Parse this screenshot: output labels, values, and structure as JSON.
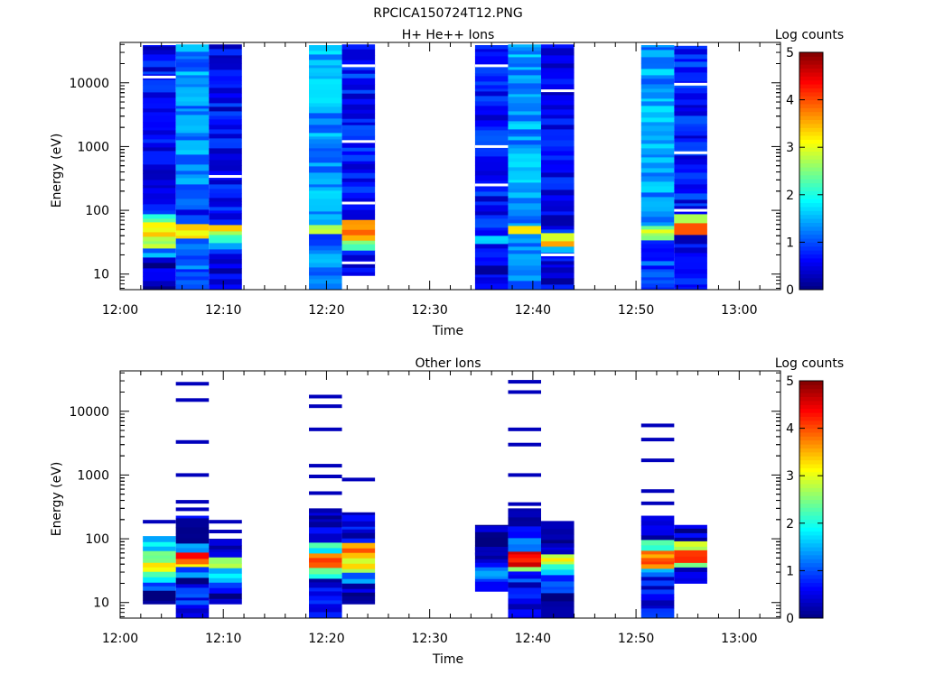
{
  "figure": {
    "title": "RPCICA150724T12.PNG"
  },
  "colors": {
    "axis": "#000000",
    "background": "#ffffff",
    "gap": "#ffffff"
  },
  "colormap": [
    "#00007f",
    "#0000ff",
    "#007fff",
    "#00ffff",
    "#7fff7f",
    "#ffff00",
    "#ff7f00",
    "#ff0000",
    "#7f0000"
  ],
  "chart_data": [
    {
      "type": "heatmap",
      "title": "H+ He++ Ions",
      "xlabel": "Time",
      "ylabel": "Energy (eV)",
      "x_ticks": [
        "12:00",
        "12:10",
        "12:20",
        "12:30",
        "12:40",
        "12:50",
        "13:00"
      ],
      "xlim_minutes": [
        0,
        64
      ],
      "y_scale": "log",
      "y_ticks": [
        "10",
        "100",
        "1000",
        "10000"
      ],
      "ylim": [
        5.7,
        43000
      ],
      "colorbar": {
        "label": "Log counts",
        "ticks": [
          "0",
          "1",
          "2",
          "3",
          "4",
          "5"
        ],
        "range": [
          0,
          5
        ]
      },
      "columns": [
        {
          "start_min": 2.2,
          "end_min": 5.4,
          "emin": 5.7,
          "emax": 39000,
          "bands": [
            {
              "emin": 5.7,
              "emax": 18,
              "value": 0.3
            },
            {
              "emin": 18,
              "emax": 26,
              "value": 1.2
            },
            {
              "emin": 26,
              "emax": 38,
              "value": 2.5
            },
            {
              "emin": 38,
              "emax": 60,
              "value": 3.2
            },
            {
              "emin": 60,
              "emax": 85,
              "value": 2.0
            },
            {
              "emin": 85,
              "emax": 39000,
              "value": 0.6
            }
          ],
          "gaps": [
            12300
          ]
        },
        {
          "start_min": 5.4,
          "end_min": 8.6,
          "emin": 5.7,
          "emax": 40000,
          "bands": [
            {
              "emin": 5.7,
              "emax": 25,
              "value": 1.1
            },
            {
              "emin": 25,
              "emax": 38,
              "value": 1.0
            },
            {
              "emin": 38,
              "emax": 55,
              "value": 3.0
            },
            {
              "emin": 55,
              "emax": 100,
              "value": 0.8
            },
            {
              "emin": 100,
              "emax": 40000,
              "value": 1.3
            }
          ],
          "gaps": []
        },
        {
          "start_min": 8.6,
          "end_min": 11.8,
          "emin": 5.7,
          "emax": 40000,
          "bands": [
            {
              "emin": 5.7,
              "emax": 20,
              "value": 0.5
            },
            {
              "emin": 20,
              "emax": 28,
              "value": 1.2
            },
            {
              "emin": 28,
              "emax": 40,
              "value": 2.2
            },
            {
              "emin": 40,
              "emax": 55,
              "value": 3.0
            },
            {
              "emin": 55,
              "emax": 40000,
              "value": 0.6
            }
          ],
          "gaps": [
            340
          ]
        },
        {
          "start_min": 18.3,
          "end_min": 21.5,
          "emin": 5.7,
          "emax": 39000,
          "bands": [
            {
              "emin": 5.7,
              "emax": 40,
              "value": 1.2
            },
            {
              "emin": 40,
              "emax": 60,
              "value": 3.0
            },
            {
              "emin": 60,
              "emax": 39000,
              "value": 1.4
            }
          ],
          "gaps": []
        },
        {
          "start_min": 21.5,
          "end_min": 24.7,
          "emin": 9.5,
          "emax": 40000,
          "bands": [
            {
              "emin": 9.5,
              "emax": 25,
              "value": 0.6
            },
            {
              "emin": 25,
              "emax": 35,
              "value": 2.5
            },
            {
              "emin": 35,
              "emax": 70,
              "value": 3.5
            },
            {
              "emin": 70,
              "emax": 40000,
              "value": 0.7
            }
          ],
          "gaps": [
            15,
            130,
            1200,
            18500
          ]
        },
        {
          "start_min": 34.4,
          "end_min": 37.6,
          "emin": 5.7,
          "emax": 39000,
          "bands": [
            {
              "emin": 5.7,
              "emax": 30,
              "value": 0.5
            },
            {
              "emin": 30,
              "emax": 40,
              "value": 1.6
            },
            {
              "emin": 40,
              "emax": 39000,
              "value": 0.7
            }
          ],
          "gaps": [
            250,
            1000,
            18500
          ]
        },
        {
          "start_min": 37.6,
          "end_min": 40.8,
          "emin": 5.7,
          "emax": 40000,
          "bands": [
            {
              "emin": 5.7,
              "emax": 40,
              "value": 1.1
            },
            {
              "emin": 40,
              "emax": 60,
              "value": 3.2
            },
            {
              "emin": 60,
              "emax": 40000,
              "value": 1.4
            }
          ],
          "gaps": []
        },
        {
          "start_min": 40.8,
          "end_min": 44.0,
          "emin": 5.7,
          "emax": 40000,
          "bands": [
            {
              "emin": 5.7,
              "emax": 24,
              "value": 0.5
            },
            {
              "emin": 24,
              "emax": 30,
              "value": 1.8
            },
            {
              "emin": 30,
              "emax": 45,
              "value": 3.3
            },
            {
              "emin": 45,
              "emax": 40000,
              "value": 0.6
            }
          ],
          "gaps": [
            20,
            7500
          ]
        },
        {
          "start_min": 50.5,
          "end_min": 53.7,
          "emin": 5.7,
          "emax": 39000,
          "bands": [
            {
              "emin": 5.7,
              "emax": 35,
              "value": 1.0
            },
            {
              "emin": 35,
              "emax": 60,
              "value": 2.8
            },
            {
              "emin": 60,
              "emax": 39000,
              "value": 1.4
            }
          ],
          "gaps": []
        },
        {
          "start_min": 53.7,
          "end_min": 56.9,
          "emin": 5.7,
          "emax": 38000,
          "bands": [
            {
              "emin": 5.7,
              "emax": 40,
              "value": 0.6
            },
            {
              "emin": 40,
              "emax": 62,
              "value": 4.2
            },
            {
              "emin": 62,
              "emax": 90,
              "value": 2.8
            },
            {
              "emin": 90,
              "emax": 38000,
              "value": 0.7
            }
          ],
          "gaps": [
            100,
            800,
            9500
          ]
        }
      ]
    },
    {
      "type": "heatmap",
      "title": "Other Ions",
      "xlabel": "Time",
      "ylabel": "Energy (eV)",
      "x_ticks": [
        "12:00",
        "12:10",
        "12:20",
        "12:30",
        "12:40",
        "12:50",
        "13:00"
      ],
      "xlim_minutes": [
        0,
        64
      ],
      "y_scale": "log",
      "y_ticks": [
        "10",
        "100",
        "1000",
        "10000"
      ],
      "ylim": [
        5.7,
        43000
      ],
      "colorbar": {
        "label": "Log counts",
        "ticks": [
          "0",
          "1",
          "2",
          "3",
          "4",
          "5"
        ],
        "range": [
          0,
          5
        ]
      },
      "columns": [
        {
          "start_min": 2.2,
          "end_min": 5.4,
          "emin": 9.5,
          "emax": 110,
          "bands": [
            {
              "emin": 9.5,
              "emax": 16,
              "value": 0.2
            },
            {
              "emin": 16,
              "emax": 22,
              "value": 0.8
            },
            {
              "emin": 22,
              "emax": 32,
              "value": 2.0
            },
            {
              "emin": 32,
              "emax": 45,
              "value": 3.2
            },
            {
              "emin": 45,
              "emax": 60,
              "value": 2.8
            },
            {
              "emin": 60,
              "emax": 110,
              "value": 1.8
            }
          ],
          "lines": [
            185
          ]
        },
        {
          "start_min": 5.4,
          "end_min": 8.6,
          "emin": 5.7,
          "emax": 230,
          "bands": [
            {
              "emin": 5.7,
              "emax": 16,
              "value": 0.7
            },
            {
              "emin": 16,
              "emax": 25,
              "value": 0.3
            },
            {
              "emin": 25,
              "emax": 35,
              "value": 1.2
            },
            {
              "emin": 35,
              "emax": 45,
              "value": 3.5
            },
            {
              "emin": 45,
              "emax": 62,
              "value": 4.3
            },
            {
              "emin": 62,
              "emax": 80,
              "value": 1.4
            },
            {
              "emin": 80,
              "emax": 230,
              "value": 0.3
            }
          ],
          "lines": [
            290,
            380,
            1000,
            3300,
            15000,
            27000
          ]
        },
        {
          "start_min": 8.6,
          "end_min": 11.8,
          "emin": 9.5,
          "emax": 100,
          "bands": [
            {
              "emin": 9.5,
              "emax": 15,
              "value": 0.2
            },
            {
              "emin": 15,
              "emax": 22,
              "value": 0.6
            },
            {
              "emin": 22,
              "emax": 35,
              "value": 1.8
            },
            {
              "emin": 35,
              "emax": 55,
              "value": 2.6
            },
            {
              "emin": 55,
              "emax": 100,
              "value": 0.3
            }
          ],
          "lines": [
            130,
            185
          ]
        },
        {
          "start_min": 18.3,
          "end_min": 21.5,
          "emin": 5.7,
          "emax": 300,
          "bands": [
            {
              "emin": 5.7,
              "emax": 17,
              "value": 0.6
            },
            {
              "emin": 17,
              "emax": 25,
              "value": 0.4
            },
            {
              "emin": 25,
              "emax": 35,
              "value": 2.2
            },
            {
              "emin": 35,
              "emax": 60,
              "value": 4.0
            },
            {
              "emin": 60,
              "emax": 90,
              "value": 2.0
            },
            {
              "emin": 90,
              "emax": 300,
              "value": 0.4
            }
          ],
          "lines": [
            520,
            950,
            1400,
            5200,
            12000,
            17000
          ]
        },
        {
          "start_min": 21.5,
          "end_min": 24.7,
          "emin": 9.5,
          "emax": 260,
          "bands": [
            {
              "emin": 9.5,
              "emax": 20,
              "value": 0.2
            },
            {
              "emin": 20,
              "emax": 30,
              "value": 1.3
            },
            {
              "emin": 30,
              "emax": 55,
              "value": 3.0
            },
            {
              "emin": 55,
              "emax": 90,
              "value": 3.6
            },
            {
              "emin": 90,
              "emax": 260,
              "value": 0.5
            }
          ],
          "lines": [
            850
          ]
        },
        {
          "start_min": 34.4,
          "end_min": 37.6,
          "emin": 15,
          "emax": 165,
          "bands": [
            {
              "emin": 15,
              "emax": 22,
              "value": 0.4
            },
            {
              "emin": 22,
              "emax": 37,
              "value": 1.2
            },
            {
              "emin": 37,
              "emax": 165,
              "value": 0.3
            }
          ],
          "lines": [
            58,
            70
          ]
        },
        {
          "start_min": 37.6,
          "end_min": 40.8,
          "emin": 5.7,
          "emax": 300,
          "bands": [
            {
              "emin": 5.7,
              "emax": 20,
              "value": 0.6
            },
            {
              "emin": 20,
              "emax": 30,
              "value": 0.8
            },
            {
              "emin": 30,
              "emax": 38,
              "value": 2.8
            },
            {
              "emin": 38,
              "emax": 65,
              "value": 4.5
            },
            {
              "emin": 65,
              "emax": 110,
              "value": 1.3
            },
            {
              "emin": 110,
              "emax": 300,
              "value": 0.5
            }
          ],
          "lines": [
            350,
            1000,
            3000,
            5200,
            20000,
            29000
          ]
        },
        {
          "start_min": 40.8,
          "end_min": 44.0,
          "emin": 5.7,
          "emax": 190,
          "bands": [
            {
              "emin": 5.7,
              "emax": 15,
              "value": 0.2
            },
            {
              "emin": 15,
              "emax": 25,
              "value": 0.8
            },
            {
              "emin": 25,
              "emax": 40,
              "value": 1.8
            },
            {
              "emin": 40,
              "emax": 62,
              "value": 3.0
            },
            {
              "emin": 62,
              "emax": 190,
              "value": 0.3
            }
          ],
          "lines": [
            78
          ]
        },
        {
          "start_min": 50.5,
          "end_min": 53.7,
          "emin": 5.7,
          "emax": 230,
          "bands": [
            {
              "emin": 5.7,
              "emax": 25,
              "value": 0.6
            },
            {
              "emin": 25,
              "emax": 35,
              "value": 1.4
            },
            {
              "emin": 35,
              "emax": 65,
              "value": 3.8
            },
            {
              "emin": 65,
              "emax": 100,
              "value": 2.0
            },
            {
              "emin": 100,
              "emax": 230,
              "value": 0.3
            }
          ],
          "lines": [
            360,
            560,
            1700,
            3600,
            6000
          ]
        },
        {
          "start_min": 53.7,
          "end_min": 56.9,
          "emin": 20,
          "emax": 165,
          "bands": [
            {
              "emin": 20,
              "emax": 35,
              "value": 0.3
            },
            {
              "emin": 35,
              "emax": 45,
              "value": 2.6
            },
            {
              "emin": 45,
              "emax": 70,
              "value": 4.4
            },
            {
              "emin": 70,
              "emax": 90,
              "value": 2.6
            },
            {
              "emin": 90,
              "emax": 165,
              "value": 0.4
            }
          ],
          "lines": []
        }
      ]
    }
  ]
}
